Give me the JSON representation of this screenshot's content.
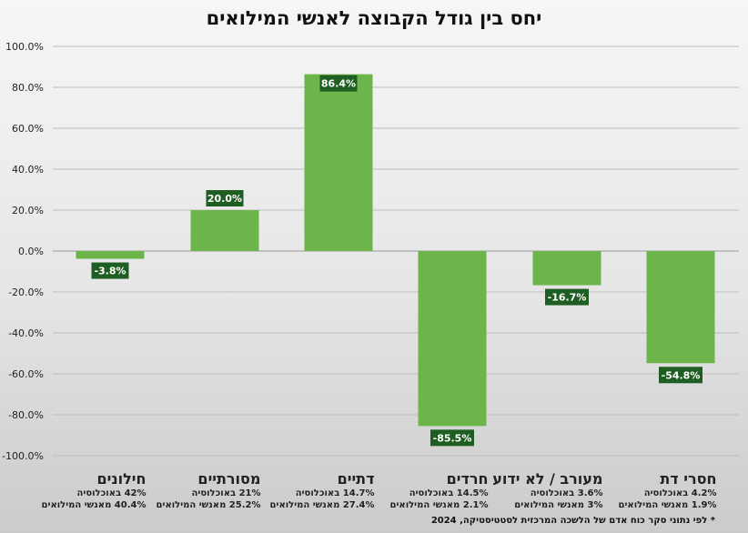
{
  "chart_data": {
    "type": "bar",
    "title": "יחס בין גודל הקבוצה לאנשי המילואים",
    "categories": [
      "חילונים",
      "מסורתיים",
      "דתיים",
      "חרדים",
      "מעורב / לא ידוע",
      "חסרי דת"
    ],
    "values": [
      -3.8,
      20.0,
      86.4,
      -85.5,
      -16.7,
      -54.8
    ],
    "data_labels": [
      "-3.8%",
      "20.0%",
      "86.4%",
      "-85.5%",
      "-16.7%",
      "-54.8%"
    ],
    "population_lines": [
      "42% באוכלוסיה",
      "21% באוכלוסיה",
      "14.7% באוכלוסיה",
      "14.5% באוכלוסיה",
      "3.6% באוכלוסיה",
      "4.2% באוכלוסיה"
    ],
    "reserve_lines": [
      "40.4% מאנשי המילואים",
      "25.2% מאנשי המילואים",
      "27.4% מאנשי המילואים",
      "2.1% מאנשי המילואים",
      "3% מאנשי המילואים",
      "1.9% מאנשי המילואים"
    ],
    "yticks": [
      "100.0%",
      "80.0%",
      "60.0%",
      "40.0%",
      "20.0%",
      "0.0%",
      "-20.0%",
      "-40.0%",
      "-60.0%",
      "-80.0%",
      "-100.0%"
    ],
    "ylim": [
      -100,
      100
    ],
    "grid": true,
    "xlabel": "",
    "ylabel": "",
    "footnote": "* לפי נתוני סקר כוח אדם של הלשכה המרכזית לסטטיסטיקה, 2024",
    "colors": {
      "bar": "#6bb54a",
      "label_bg": "#1f5e22",
      "label_text": "#ffffff",
      "grid": "#bdbdbd"
    }
  }
}
